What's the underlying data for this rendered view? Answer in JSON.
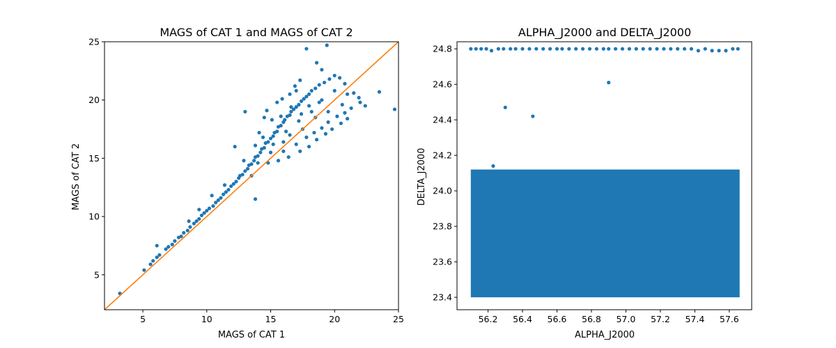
{
  "chart_data": [
    {
      "type": "scatter",
      "title": "MAGS of CAT 1 and MAGS of CAT 2",
      "xlabel": "MAGS of CAT 1",
      "ylabel": "MAGS of CAT 2",
      "xlim": [
        2,
        25
      ],
      "ylim": [
        2,
        25
      ],
      "xticks": [
        5,
        10,
        15,
        20,
        25
      ],
      "yticks": [
        5,
        10,
        15,
        20,
        25
      ],
      "grid": false,
      "colors": {
        "points": "#1f77b4",
        "reference_line": "#ff7f0e"
      },
      "reference_line": {
        "x": [
          2,
          25
        ],
        "y": [
          2,
          25
        ]
      },
      "series": [
        {
          "points": [
            [
              3.2,
              3.4
            ],
            [
              5.1,
              5.4
            ],
            [
              5.6,
              5.9
            ],
            [
              5.8,
              6.2
            ],
            [
              6.1,
              6.5
            ],
            [
              6.3,
              6.7
            ],
            [
              6.1,
              7.5
            ],
            [
              6.8,
              7.2
            ],
            [
              7.0,
              7.4
            ],
            [
              7.3,
              7.6
            ],
            [
              7.5,
              7.9
            ],
            [
              7.8,
              8.2
            ],
            [
              8.0,
              8.3
            ],
            [
              8.2,
              8.6
            ],
            [
              8.5,
              8.8
            ],
            [
              8.7,
              9.1
            ],
            [
              8.6,
              9.6
            ],
            [
              9.0,
              9.4
            ],
            [
              9.2,
              9.6
            ],
            [
              9.4,
              9.8
            ],
            [
              9.6,
              10.1
            ],
            [
              9.8,
              10.3
            ],
            [
              10.0,
              10.5
            ],
            [
              10.2,
              10.7
            ],
            [
              10.5,
              10.9
            ],
            [
              10.7,
              11.2
            ],
            [
              10.9,
              11.4
            ],
            [
              11.1,
              11.6
            ],
            [
              11.3,
              11.9
            ],
            [
              11.5,
              12.1
            ],
            [
              11.7,
              12.3
            ],
            [
              11.9,
              12.6
            ],
            [
              12.1,
              12.8
            ],
            [
              12.3,
              13.0
            ],
            [
              12.5,
              13.3
            ],
            [
              12.6,
              13.5
            ],
            [
              12.8,
              13.6
            ],
            [
              13.0,
              13.9
            ],
            [
              13.2,
              14.1
            ],
            [
              13.3,
              14.4
            ],
            [
              13.5,
              14.5
            ],
            [
              13.7,
              14.8
            ],
            [
              13.8,
              15.1
            ],
            [
              14.0,
              15.2
            ],
            [
              14.2,
              15.5
            ],
            [
              14.3,
              15.8
            ],
            [
              14.5,
              15.9
            ],
            [
              14.6,
              16.3
            ],
            [
              14.8,
              16.4
            ],
            [
              15.0,
              16.7
            ],
            [
              15.2,
              16.9
            ],
            [
              15.3,
              17.2
            ],
            [
              15.5,
              17.3
            ],
            [
              15.6,
              17.7
            ],
            [
              15.8,
              17.8
            ],
            [
              16.0,
              18.1
            ],
            [
              16.1,
              18.3
            ],
            [
              16.3,
              18.6
            ],
            [
              16.5,
              18.7
            ],
            [
              16.6,
              19.0
            ],
            [
              16.8,
              19.2
            ],
            [
              17.0,
              19.4
            ],
            [
              17.2,
              19.6
            ],
            [
              17.4,
              19.9
            ],
            [
              17.6,
              20.1
            ],
            [
              17.8,
              20.3
            ],
            [
              18.0,
              20.5
            ],
            [
              18.2,
              20.8
            ],
            [
              18.5,
              21.0
            ],
            [
              18.8,
              21.3
            ],
            [
              19.2,
              21.5
            ],
            [
              19.6,
              21.8
            ],
            [
              20.0,
              22.1
            ],
            [
              20.4,
              21.9
            ],
            [
              20.8,
              21.4
            ],
            [
              21.0,
              20.5
            ],
            [
              21.5,
              20.6
            ],
            [
              21.9,
              20.2
            ],
            [
              22.0,
              19.8
            ],
            [
              22.4,
              19.5
            ],
            [
              23.5,
              20.7
            ],
            [
              24.7,
              19.2
            ],
            [
              19.4,
              24.7
            ],
            [
              17.8,
              24.4
            ],
            [
              18.6,
              23.2
            ],
            [
              19.0,
              22.6
            ],
            [
              13.0,
              19.0
            ],
            [
              14.5,
              18.5
            ],
            [
              15.5,
              19.8
            ],
            [
              16.5,
              20.5
            ],
            [
              17.0,
              20.8
            ],
            [
              15.1,
              18.3
            ],
            [
              14.1,
              17.2
            ],
            [
              12.2,
              16.0
            ],
            [
              13.5,
              13.5
            ],
            [
              14.8,
              14.6
            ],
            [
              16.0,
              15.6
            ],
            [
              17.0,
              16.2
            ],
            [
              17.8,
              16.8
            ],
            [
              18.4,
              17.2
            ],
            [
              19.0,
              17.6
            ],
            [
              19.5,
              18.1
            ],
            [
              20.2,
              18.6
            ],
            [
              20.8,
              18.9
            ],
            [
              21.3,
              19.3
            ],
            [
              16.5,
              17.0
            ],
            [
              17.5,
              17.5
            ],
            [
              18.5,
              18.5
            ],
            [
              19.5,
              19.0
            ],
            [
              16.0,
              16.4
            ],
            [
              15.0,
              15.5
            ],
            [
              14.0,
              14.6
            ],
            [
              18.0,
              19.5
            ],
            [
              19.0,
              20.0
            ],
            [
              20.0,
              20.8
            ],
            [
              15.2,
              16.2
            ],
            [
              16.2,
              17.3
            ],
            [
              17.2,
              18.2
            ],
            [
              18.2,
              19.0
            ],
            [
              15.8,
              18.6
            ],
            [
              16.6,
              19.4
            ],
            [
              17.4,
              18.8
            ],
            [
              18.8,
              19.8
            ],
            [
              14.4,
              16.8
            ],
            [
              13.8,
              16.1
            ],
            [
              12.9,
              14.8
            ],
            [
              11.4,
              12.7
            ],
            [
              10.4,
              11.8
            ],
            [
              9.4,
              10.6
            ],
            [
              13.8,
              11.5
            ],
            [
              15.6,
              14.8
            ],
            [
              16.4,
              15.1
            ],
            [
              17.3,
              15.6
            ],
            [
              18.0,
              16.0
            ],
            [
              18.6,
              16.6
            ],
            [
              19.3,
              17.1
            ],
            [
              19.8,
              17.5
            ],
            [
              20.5,
              18.0
            ],
            [
              21.0,
              18.4
            ],
            [
              15.9,
              20.1
            ],
            [
              16.9,
              21.2
            ],
            [
              17.3,
              21.7
            ],
            [
              14.7,
              19.1
            ],
            [
              20.6,
              19.6
            ]
          ]
        }
      ]
    },
    {
      "type": "scatter",
      "title": "ALPHA_J2000 and DELTA_J2000",
      "xlabel": "ALPHA_J2000",
      "ylabel": "DELTA_J2000",
      "xlim": [
        56.02,
        57.73
      ],
      "ylim": [
        23.33,
        24.84
      ],
      "xticks": [
        56.2,
        56.4,
        56.6,
        56.8,
        57.0,
        57.2,
        57.4,
        57.6
      ],
      "xtick_labels": [
        "56.2",
        "56.4",
        "56.6",
        "56.8",
        "57.0",
        "57.2",
        "57.4",
        "57.6"
      ],
      "yticks": [
        23.4,
        23.6,
        23.8,
        24.0,
        24.2,
        24.4,
        24.6,
        24.8
      ],
      "ytick_labels": [
        "23.4",
        "23.6",
        "23.8",
        "24.0",
        "24.2",
        "24.4",
        "24.6",
        "24.8"
      ],
      "grid": false,
      "colors": {
        "points": "#1f77b4"
      },
      "bands": [
        {
          "x": [
            56.1,
            57.66
          ],
          "y": [
            23.4,
            24.12
          ],
          "note": "dense uniform field"
        }
      ],
      "series": [
        {
          "points": [
            [
              56.1,
              24.8
            ],
            [
              56.13,
              24.8
            ],
            [
              56.16,
              24.8
            ],
            [
              56.19,
              24.8
            ],
            [
              56.22,
              24.79
            ],
            [
              56.26,
              24.8
            ],
            [
              56.29,
              24.8
            ],
            [
              56.33,
              24.8
            ],
            [
              56.36,
              24.8
            ],
            [
              56.4,
              24.8
            ],
            [
              56.44,
              24.8
            ],
            [
              56.48,
              24.8
            ],
            [
              56.52,
              24.8
            ],
            [
              56.56,
              24.8
            ],
            [
              56.6,
              24.8
            ],
            [
              56.63,
              24.8
            ],
            [
              56.67,
              24.8
            ],
            [
              56.71,
              24.8
            ],
            [
              56.75,
              24.8
            ],
            [
              56.79,
              24.8
            ],
            [
              56.83,
              24.8
            ],
            [
              56.87,
              24.8
            ],
            [
              56.9,
              24.8
            ],
            [
              56.94,
              24.8
            ],
            [
              56.98,
              24.8
            ],
            [
              57.02,
              24.8
            ],
            [
              57.06,
              24.8
            ],
            [
              57.1,
              24.8
            ],
            [
              57.14,
              24.8
            ],
            [
              57.18,
              24.8
            ],
            [
              57.22,
              24.8
            ],
            [
              57.26,
              24.8
            ],
            [
              57.3,
              24.8
            ],
            [
              57.34,
              24.8
            ],
            [
              57.38,
              24.8
            ],
            [
              57.42,
              24.79
            ],
            [
              57.46,
              24.8
            ],
            [
              57.5,
              24.79
            ],
            [
              57.54,
              24.79
            ],
            [
              57.58,
              24.79
            ],
            [
              57.62,
              24.8
            ],
            [
              57.65,
              24.8
            ],
            [
              56.9,
              24.61
            ],
            [
              56.3,
              24.47
            ],
            [
              56.46,
              24.42
            ],
            [
              56.23,
              24.14
            ]
          ]
        }
      ]
    }
  ]
}
